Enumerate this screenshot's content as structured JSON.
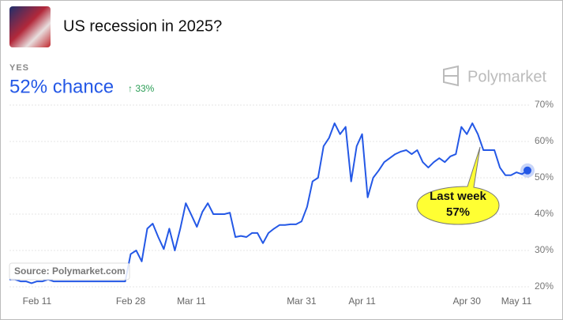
{
  "chart_data": {
    "type": "line",
    "title": "US recession in 2025?",
    "outcome": "YES",
    "headline": "52% chance",
    "change": "↑ 33%",
    "brand": "Polymarket",
    "source": "Source: Polymarket.com",
    "annotation": {
      "title": "Last week",
      "label": "57%"
    },
    "color": "#2458e6",
    "categories": [
      null,
      null,
      null,
      null,
      null,
      "Feb 11",
      null,
      null,
      null,
      null,
      null,
      null,
      null,
      null,
      null,
      null,
      null,
      null,
      null,
      null,
      null,
      null,
      "Feb 28",
      null,
      null,
      null,
      null,
      null,
      null,
      null,
      null,
      null,
      null,
      "Mar 11",
      null,
      null,
      null,
      null,
      null,
      null,
      null,
      null,
      null,
      null,
      null,
      null,
      null,
      null,
      null,
      null,
      null,
      null,
      null,
      "Mar 31",
      null,
      null,
      null,
      null,
      null,
      null,
      null,
      null,
      null,
      null,
      "Apr 11",
      null,
      null,
      null,
      null,
      null,
      null,
      null,
      null,
      null,
      null,
      null,
      null,
      null,
      null,
      null,
      null,
      null,
      null,
      "Apr 30",
      null,
      null,
      null,
      null,
      null,
      null,
      null,
      null,
      "May 11",
      null,
      null
    ],
    "values": [
      22,
      22,
      21.5,
      21.5,
      21,
      21.5,
      21.5,
      22,
      21.5,
      21.5,
      21.5,
      21.5,
      21.5,
      21.5,
      21.5,
      21.5,
      21.5,
      21.5,
      21.5,
      21.5,
      21.5,
      21.5,
      29,
      30,
      27,
      36,
      37.4,
      33.7,
      30.4,
      36,
      30,
      36,
      43,
      39.8,
      36.5,
      40.6,
      43,
      40,
      40,
      40,
      40.4,
      33.7,
      34,
      33.7,
      34.8,
      34.8,
      32,
      34.8,
      36,
      37,
      37,
      37.2,
      37.2,
      38,
      42,
      49,
      50,
      58.7,
      61,
      65,
      62,
      64,
      49,
      58.7,
      62,
      44.6,
      50,
      52,
      54.3,
      55.4,
      56.5,
      57.2,
      57.6,
      56.5,
      57.6,
      54.3,
      52.8,
      54.3,
      55.4,
      54.3,
      55.9,
      56.5,
      64,
      62,
      65,
      62,
      57.6,
      57.6,
      57.6,
      52.8,
      50.7,
      50.7,
      51.5,
      51,
      52
    ],
    "ylim": [
      20,
      70
    ],
    "yticks": [
      {
        "value": 20,
        "label": "20%"
      },
      {
        "value": 30,
        "label": "30%"
      },
      {
        "value": 40,
        "label": "40%"
      },
      {
        "value": 50,
        "label": "50%"
      },
      {
        "value": 60,
        "label": "60%"
      },
      {
        "value": 70,
        "label": "70%"
      }
    ],
    "grid": true
  }
}
